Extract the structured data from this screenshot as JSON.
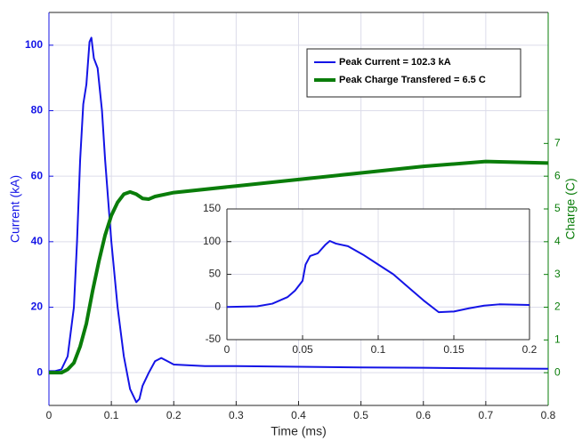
{
  "chart_data": [
    {
      "type": "line",
      "xlabel": "Time (ms)",
      "ylabel": "Current (kA)",
      "y2label": "Charge (C)",
      "xlim": [
        0,
        0.8
      ],
      "xticks": [
        0,
        0.1,
        0.2,
        0.3,
        0.4,
        0.5,
        0.6,
        0.7,
        0.8
      ],
      "ylim": [
        -10,
        110
      ],
      "yticks": [
        0,
        20,
        40,
        60,
        80,
        100
      ],
      "y2lim": [
        -1,
        11
      ],
      "y2ticks": [
        0,
        1,
        2,
        3,
        4,
        5,
        6,
        7
      ],
      "grid": true,
      "legend": "upper right",
      "series": [
        {
          "name": "Peak Current = 102.3 kA",
          "color": "#1414e6",
          "axis": "y",
          "x": [
            0,
            0.01,
            0.02,
            0.03,
            0.04,
            0.045,
            0.05,
            0.055,
            0.06,
            0.065,
            0.068,
            0.072,
            0.078,
            0.085,
            0.09,
            0.1,
            0.11,
            0.12,
            0.13,
            0.14,
            0.145,
            0.15,
            0.16,
            0.17,
            0.18,
            0.19,
            0.2,
            0.25,
            0.3,
            0.4,
            0.5,
            0.6,
            0.7,
            0.8
          ],
          "values": [
            0.5,
            0.5,
            1,
            5,
            20,
            40,
            65,
            82,
            88,
            101,
            102.3,
            96,
            93,
            80,
            65,
            40,
            20,
            5,
            -5,
            -9,
            -8,
            -4,
            0,
            3.5,
            4.5,
            3.5,
            2.5,
            2,
            2,
            1.8,
            1.6,
            1.5,
            1.3,
            1.2
          ]
        },
        {
          "name": "Peak Charge Transfered = 6.5 C",
          "color": "#0a7d0a",
          "axis": "y2",
          "x": [
            0,
            0.02,
            0.03,
            0.04,
            0.05,
            0.06,
            0.07,
            0.08,
            0.09,
            0.1,
            0.11,
            0.12,
            0.13,
            0.14,
            0.15,
            0.16,
            0.17,
            0.2,
            0.3,
            0.4,
            0.5,
            0.6,
            0.7,
            0.8
          ],
          "values": [
            0,
            0,
            0.1,
            0.3,
            0.8,
            1.5,
            2.5,
            3.4,
            4.2,
            4.8,
            5.2,
            5.45,
            5.52,
            5.45,
            5.32,
            5.3,
            5.38,
            5.5,
            5.7,
            5.9,
            6.1,
            6.3,
            6.45,
            6.4
          ]
        }
      ]
    },
    {
      "type": "line",
      "xlim": [
        0,
        0.2
      ],
      "xticks": [
        0,
        0.05,
        0.1,
        0.15,
        0.2
      ],
      "ylim": [
        -50,
        150
      ],
      "yticks": [
        -50,
        0,
        50,
        100,
        150
      ],
      "grid": true,
      "series": [
        {
          "color": "#1414e6",
          "x": [
            0,
            0.02,
            0.03,
            0.04,
            0.045,
            0.05,
            0.052,
            0.055,
            0.06,
            0.065,
            0.068,
            0.072,
            0.08,
            0.09,
            0.1,
            0.11,
            0.12,
            0.13,
            0.14,
            0.15,
            0.16,
            0.17,
            0.18,
            0.19,
            0.2
          ],
          "values": [
            0,
            1,
            5,
            15,
            25,
            40,
            65,
            78,
            82,
            95,
            101,
            97,
            93,
            80,
            65,
            50,
            30,
            10,
            -8,
            -7,
            -2,
            2,
            4,
            3.5,
            3
          ]
        }
      ]
    }
  ]
}
